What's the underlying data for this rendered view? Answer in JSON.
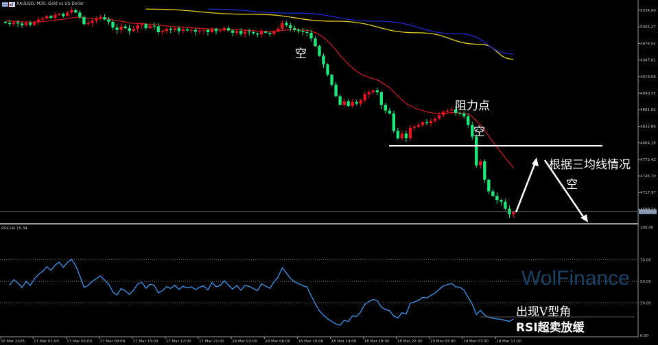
{
  "header": {
    "title": "XAUUSD, M30:  Gold vs US Dollar",
    "icons": [
      "chart-flag-icon",
      "chart-settings-icon"
    ]
  },
  "price_axis": {
    "ticks": [
      "5034.00",
      "5005.27",
      "4976.54",
      "4947.81",
      "4919.08",
      "4890.35",
      "4861.62",
      "4832.89",
      "4804.16",
      "4775.43",
      "4746.70",
      "4717.97",
      "4689.24"
    ],
    "tick_values": [
      5034.0,
      5005.27,
      4976.54,
      4947.81,
      4919.08,
      4890.35,
      4861.62,
      4832.89,
      4804.16,
      4775.43,
      4746.7,
      4717.97,
      4689.24
    ]
  },
  "time_axis": {
    "ticks": [
      "16 Mar 2026",
      "17 Mar 01:00",
      "17 Mar 05:00",
      "17 Mar 09:00",
      "17 Mar 13:00",
      "17 Mar 17:00",
      "17 Mar 21:00",
      "18 Mar 02:00",
      "18 Mar 06:00",
      "18 Mar 10:00",
      "18 Mar 14:00",
      "18 Mar 18:00",
      "18 Mar 22:00",
      "19 Mar 03:00",
      "19 Mar 07:00",
      "19 Mar 11:00"
    ],
    "tick_candle_index": [
      0,
      7,
      15,
      23,
      31,
      39,
      47,
      55,
      63,
      71,
      79,
      87,
      95,
      103,
      111,
      119
    ]
  },
  "rsi": {
    "label": "RSI(14) 15.34",
    "period": 14,
    "ticks": [
      "100.00",
      "70.00",
      "50.00",
      "30.00",
      "0.00"
    ],
    "tick_values": [
      100,
      70,
      50,
      30,
      0
    ],
    "color": "#3a8fe0"
  },
  "colors": {
    "bull": "#e8141e",
    "bear": "#1ee87a",
    "ma_fast": "#d21a1a",
    "ma_mid": "#e8d020",
    "ma_slow": "#1a2ad0",
    "grid": "#7a7a7a"
  },
  "chart_data": {
    "type": "candlestick",
    "symbol": "XAUUSD",
    "timeframe": "M30",
    "closes": [
      5012,
      5010,
      5013,
      5011,
      5008,
      5012,
      5009,
      5014,
      5018,
      5020,
      5024,
      5021,
      5026,
      5028,
      5024,
      5030,
      5034,
      5030,
      5022,
      5010,
      5012,
      5016,
      5019,
      5022,
      5018,
      5014,
      5004,
      5000,
      5006,
      5003,
      4998,
      5002,
      5008,
      5010,
      5003,
      5007,
      5006,
      4996,
      4998,
      5002,
      5000,
      5003,
      4998,
      5001,
      4999,
      5000,
      4997,
      4999,
      5000,
      4996,
      5002,
      4998,
      4999,
      5003,
      4999,
      4995,
      4998,
      4993,
      4997,
      4996,
      4994,
      4992,
      4997,
      4995,
      4993,
      4998,
      5002,
      5012,
      5008,
      5003,
      5000,
      4998,
      4996,
      4995,
      4985,
      4972,
      4955,
      4940,
      4922,
      4905,
      4885,
      4870,
      4876,
      4868,
      4875,
      4872,
      4878,
      4888,
      4892,
      4895,
      4892,
      4870,
      4860,
      4855,
      4825,
      4812,
      4820,
      4812,
      4830,
      4832,
      4835,
      4840,
      4838,
      4842,
      4846,
      4852,
      4858,
      4860,
      4862,
      4856,
      4855,
      4850,
      4835,
      4815,
      4765,
      4772,
      4740,
      4720,
      4712,
      4705,
      4702,
      4690,
      4680,
      4684
    ],
    "ma_mid_points": [
      [
        34,
        5036
      ],
      [
        60,
        5027
      ],
      [
        80,
        5015
      ],
      [
        100,
        4995
      ],
      [
        115,
        4975
      ],
      [
        123,
        4949
      ]
    ],
    "ma_slow_points": [
      [
        49,
        5036
      ],
      [
        70,
        5029
      ],
      [
        90,
        5015
      ],
      [
        110,
        4993
      ],
      [
        123,
        4958
      ]
    ],
    "support_level": 4802,
    "ylim": [
      4676,
      5046
    ]
  },
  "annotations": {
    "short_1": "空",
    "resistance": "阻力点",
    "short_2": "空",
    "three_ma": "根据三均线情况",
    "short_3": "空",
    "v_angle": "出现V型角",
    "rsi_oversold": "RSI超卖放缓"
  },
  "watermark": "WolFinance"
}
